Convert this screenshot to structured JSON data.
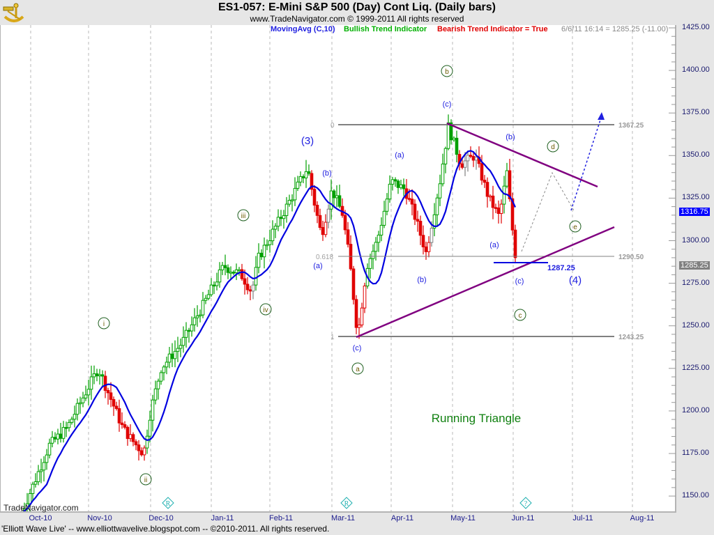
{
  "header": {
    "title": "ES1-057:  E-Mini S&P 500 (Day) Cont Liq.  (Daily bars)",
    "subtitle": "www.TradeNavigator.com © 1999-2011 All rights reserved"
  },
  "legend": {
    "moving_avg": "MovingAvg (C,10)",
    "bullish": "Bullish Trend Indicator",
    "bearish": "Bearish Trend Indicator = True",
    "last_quote": "6/6/11 16:14 = 1285.25 (-11.00)"
  },
  "colors": {
    "moving_avg": "#0000e0",
    "bullish": "#00a000",
    "bearish": "#e00000",
    "neutral": "#808080",
    "trendline": "#800080",
    "fib_line": "#808080",
    "label_blue": "#2020e0",
    "label_green": "#006400"
  },
  "y_axis": {
    "ticks": [
      "1425.00",
      "1400.00",
      "1375.00",
      "1350.00",
      "1325.00",
      "1300.00",
      "1275.00",
      "1250.00",
      "1225.00",
      "1200.00",
      "1175.00",
      "1150.00"
    ],
    "current_ma_box": "1316.75",
    "current_price_box": "1285.25"
  },
  "x_axis": {
    "ticks": [
      "Oct-10",
      "Nov-10",
      "Dec-10",
      "Jan-11",
      "Feb-11",
      "Mar-11",
      "Apr-11",
      "May-11",
      "Jun-11",
      "Jul-11",
      "Aug-11"
    ]
  },
  "footer": "'Elliott Wave Live' -- www.elliottwavelive.blogspot.com -- ©2010-2011. All rights reserved.",
  "watermark": "TradeNavigator.com",
  "annotation_text": "Running Triangle",
  "chart_data": {
    "type": "candlestick",
    "title": "ES1-057: E-Mini S&P 500 (Day) Cont Liq. (Daily bars)",
    "xlabel": "",
    "ylabel": "Price",
    "ylim": [
      1140,
      1430
    ],
    "x_range": [
      "Oct-10",
      "Aug-11"
    ],
    "grid": {
      "vertical": true,
      "horizontal": false,
      "style": "dashed"
    },
    "indicators": [
      "MovingAvg (C,10)",
      "Bullish Trend Indicator",
      "Bearish Trend Indicator = True"
    ],
    "last": {
      "date": "6/6/11 16:14",
      "close": 1285.25,
      "change": -11.0
    },
    "ma_last": 1316.75,
    "approx_key_prices": [
      {
        "date": "Oct-10 start",
        "price": 1145
      },
      {
        "date": "early Nov-10",
        "price": 1225,
        "label": "i"
      },
      {
        "date": "late Nov-10",
        "price": 1173,
        "label": "ii"
      },
      {
        "date": "Jan-11",
        "price": 1300,
        "label": "iii"
      },
      {
        "date": "late Jan-11",
        "price": 1270,
        "label": "iv"
      },
      {
        "date": "mid Feb-11",
        "price": 1343,
        "label": "(3)"
      },
      {
        "date": "mid Mar-11",
        "price": 1243.25,
        "label": "(c) / a"
      },
      {
        "date": "early May-11",
        "price": 1367.25,
        "label": "(c) / b"
      },
      {
        "date": "early Jun-11",
        "price": 1285.25,
        "label": "(c) / c"
      }
    ],
    "fib_levels": [
      {
        "ratio": "0",
        "price": 1367.25
      },
      {
        "ratio": "0.618",
        "price": 1290.5
      },
      {
        "ratio": "1",
        "price": 1243.25
      }
    ],
    "support_marker": {
      "price": 1287.25
    },
    "trendlines": [
      {
        "name": "upper",
        "from": {
          "date": "May-11",
          "price": 1367
        },
        "to": {
          "date": "Jul-11",
          "price": 1332
        }
      },
      {
        "name": "lower",
        "from": {
          "date": "Mar-11",
          "price": 1243
        },
        "to": {
          "date": "Jul-11",
          "price": 1307
        }
      }
    ],
    "wave_labels": [
      "i",
      "ii",
      "iii",
      "iv",
      "(3)",
      "(a)",
      "(b)",
      "(c)",
      "a",
      "(a)",
      "(b)",
      "(c)",
      "b",
      "(a)",
      "(b)",
      "(c)",
      "c",
      "d",
      "e",
      "(4)"
    ],
    "annotation": "Running Triangle"
  },
  "labels": {
    "w3": "(3)",
    "wi": "i",
    "wii": "ii",
    "wiii": "iii",
    "wiv": "iv",
    "a1": "(a)",
    "b1": "(b)",
    "c1": "(c)",
    "circ_a": "a",
    "a2": "(a)",
    "b2": "(b)",
    "c2": "(c)",
    "circ_b": "b",
    "a3": "(a)",
    "b3": "(b)",
    "c3": "(c)",
    "circ_c": "c",
    "circ_d": "d",
    "circ_e": "e",
    "w4": "(4)",
    "fib0": "0",
    "fib618": "0.618",
    "fib1": "1",
    "p1367": "1367.25",
    "p1290": "1290.50",
    "p1243": "1243.25",
    "p1287": "1287.25",
    "diamond_r1": "R",
    "diamond_r2": "R",
    "diamond_q": "?"
  }
}
